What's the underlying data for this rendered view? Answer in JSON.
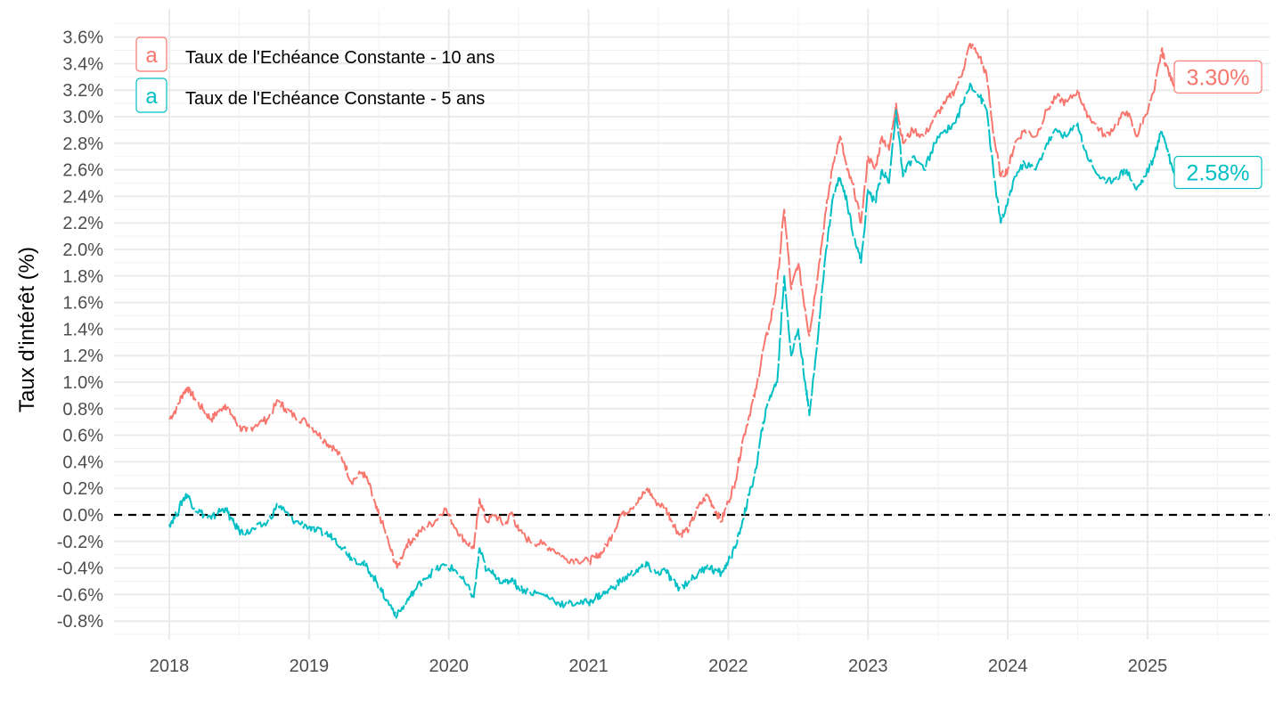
{
  "chart_data": {
    "type": "line",
    "ylabel": "Taux d'intérêt (%)",
    "xlabel": "",
    "x_ticks": [
      "2018",
      "2019",
      "2020",
      "2021",
      "2022",
      "2023",
      "2024",
      "2025"
    ],
    "x_range": [
      2017.6,
      2025.85
    ],
    "y_ticks": [
      "-0.8%",
      "-0.6%",
      "-0.4%",
      "-0.2%",
      "0.0%",
      "0.2%",
      "0.4%",
      "0.6%",
      "0.8%",
      "1.0%",
      "1.2%",
      "1.4%",
      "1.6%",
      "1.8%",
      "2.0%",
      "2.2%",
      "2.4%",
      "2.6%",
      "2.8%",
      "3.0%",
      "3.2%",
      "3.4%",
      "3.6%"
    ],
    "ylim": [
      -0.9,
      3.7
    ],
    "grid": true,
    "reference_line": {
      "y": 0,
      "style": "dashed",
      "color": "#000000"
    },
    "legend": {
      "position": "top-left",
      "key_glyph": "a"
    },
    "series": [
      {
        "name": "Taux de l'Echéance Constante - 10 ans",
        "color": "#F8766D",
        "end_label": "3.30%",
        "points": [
          [
            2018.0,
            0.72
          ],
          [
            2018.05,
            0.8
          ],
          [
            2018.1,
            0.92
          ],
          [
            2018.13,
            0.96
          ],
          [
            2018.18,
            0.88
          ],
          [
            2018.25,
            0.78
          ],
          [
            2018.3,
            0.72
          ],
          [
            2018.35,
            0.78
          ],
          [
            2018.4,
            0.83
          ],
          [
            2018.45,
            0.75
          ],
          [
            2018.5,
            0.66
          ],
          [
            2018.55,
            0.63
          ],
          [
            2018.62,
            0.68
          ],
          [
            2018.7,
            0.72
          ],
          [
            2018.78,
            0.86
          ],
          [
            2018.83,
            0.8
          ],
          [
            2018.9,
            0.74
          ],
          [
            2018.98,
            0.7
          ],
          [
            2019.05,
            0.63
          ],
          [
            2019.12,
            0.55
          ],
          [
            2019.18,
            0.5
          ],
          [
            2019.25,
            0.4
          ],
          [
            2019.3,
            0.25
          ],
          [
            2019.38,
            0.32
          ],
          [
            2019.42,
            0.26
          ],
          [
            2019.48,
            0.05
          ],
          [
            2019.52,
            -0.05
          ],
          [
            2019.58,
            -0.25
          ],
          [
            2019.63,
            -0.4
          ],
          [
            2019.7,
            -0.22
          ],
          [
            2019.75,
            -0.18
          ],
          [
            2019.82,
            -0.1
          ],
          [
            2019.9,
            -0.05
          ],
          [
            2019.97,
            0.05
          ],
          [
            2020.05,
            -0.1
          ],
          [
            2020.12,
            -0.2
          ],
          [
            2020.18,
            -0.25
          ],
          [
            2020.22,
            0.12
          ],
          [
            2020.27,
            -0.05
          ],
          [
            2020.33,
            0.0
          ],
          [
            2020.4,
            -0.08
          ],
          [
            2020.45,
            0.02
          ],
          [
            2020.5,
            -0.12
          ],
          [
            2020.58,
            -0.2
          ],
          [
            2020.67,
            -0.22
          ],
          [
            2020.75,
            -0.26
          ],
          [
            2020.83,
            -0.33
          ],
          [
            2020.92,
            -0.34
          ],
          [
            2021.0,
            -0.35
          ],
          [
            2021.05,
            -0.32
          ],
          [
            2021.1,
            -0.28
          ],
          [
            2021.17,
            -0.15
          ],
          [
            2021.23,
            0.0
          ],
          [
            2021.3,
            0.05
          ],
          [
            2021.37,
            0.12
          ],
          [
            2021.42,
            0.2
          ],
          [
            2021.48,
            0.1
          ],
          [
            2021.55,
            0.05
          ],
          [
            2021.6,
            -0.05
          ],
          [
            2021.65,
            -0.15
          ],
          [
            2021.72,
            -0.1
          ],
          [
            2021.78,
            0.05
          ],
          [
            2021.85,
            0.15
          ],
          [
            2021.9,
            0.05
          ],
          [
            2021.95,
            -0.05
          ],
          [
            2022.0,
            0.1
          ],
          [
            2022.05,
            0.25
          ],
          [
            2022.1,
            0.55
          ],
          [
            2022.15,
            0.75
          ],
          [
            2022.2,
            0.95
          ],
          [
            2022.25,
            1.25
          ],
          [
            2022.3,
            1.45
          ],
          [
            2022.35,
            1.75
          ],
          [
            2022.4,
            2.3
          ],
          [
            2022.45,
            1.7
          ],
          [
            2022.5,
            1.9
          ],
          [
            2022.55,
            1.55
          ],
          [
            2022.58,
            1.35
          ],
          [
            2022.65,
            1.9
          ],
          [
            2022.7,
            2.3
          ],
          [
            2022.75,
            2.65
          ],
          [
            2022.8,
            2.85
          ],
          [
            2022.85,
            2.6
          ],
          [
            2022.9,
            2.45
          ],
          [
            2022.95,
            2.2
          ],
          [
            2023.0,
            2.7
          ],
          [
            2023.05,
            2.6
          ],
          [
            2023.1,
            2.85
          ],
          [
            2023.15,
            2.75
          ],
          [
            2023.2,
            3.1
          ],
          [
            2023.25,
            2.8
          ],
          [
            2023.32,
            2.9
          ],
          [
            2023.4,
            2.85
          ],
          [
            2023.48,
            3.0
          ],
          [
            2023.55,
            3.1
          ],
          [
            2023.62,
            3.2
          ],
          [
            2023.68,
            3.35
          ],
          [
            2023.73,
            3.55
          ],
          [
            2023.8,
            3.45
          ],
          [
            2023.85,
            3.3
          ],
          [
            2023.9,
            2.85
          ],
          [
            2023.95,
            2.55
          ],
          [
            2024.0,
            2.6
          ],
          [
            2024.05,
            2.8
          ],
          [
            2024.12,
            2.9
          ],
          [
            2024.2,
            2.85
          ],
          [
            2024.28,
            3.05
          ],
          [
            2024.35,
            3.15
          ],
          [
            2024.42,
            3.1
          ],
          [
            2024.5,
            3.2
          ],
          [
            2024.55,
            3.05
          ],
          [
            2024.62,
            2.95
          ],
          [
            2024.7,
            2.85
          ],
          [
            2024.78,
            2.95
          ],
          [
            2024.85,
            3.05
          ],
          [
            2024.92,
            2.85
          ],
          [
            2024.98,
            3.0
          ],
          [
            2025.05,
            3.2
          ],
          [
            2025.1,
            3.5
          ],
          [
            2025.13,
            3.4
          ],
          [
            2025.18,
            3.25
          ],
          [
            2025.25,
            3.3
          ]
        ]
      },
      {
        "name": "Taux de l'Echéance Constante - 5 ans",
        "color": "#00BFC4",
        "end_label": "2.58%",
        "points": [
          [
            2018.0,
            -0.07
          ],
          [
            2018.05,
            0.0
          ],
          [
            2018.1,
            0.12
          ],
          [
            2018.13,
            0.15
          ],
          [
            2018.18,
            0.05
          ],
          [
            2018.25,
            0.0
          ],
          [
            2018.3,
            -0.03
          ],
          [
            2018.35,
            0.02
          ],
          [
            2018.4,
            0.05
          ],
          [
            2018.45,
            -0.05
          ],
          [
            2018.5,
            -0.12
          ],
          [
            2018.55,
            -0.14
          ],
          [
            2018.62,
            -0.1
          ],
          [
            2018.7,
            -0.06
          ],
          [
            2018.78,
            0.08
          ],
          [
            2018.83,
            0.02
          ],
          [
            2018.9,
            -0.05
          ],
          [
            2018.98,
            -0.08
          ],
          [
            2019.05,
            -0.12
          ],
          [
            2019.12,
            -0.14
          ],
          [
            2019.18,
            -0.18
          ],
          [
            2019.25,
            -0.25
          ],
          [
            2019.3,
            -0.32
          ],
          [
            2019.38,
            -0.36
          ],
          [
            2019.42,
            -0.4
          ],
          [
            2019.48,
            -0.5
          ],
          [
            2019.52,
            -0.58
          ],
          [
            2019.58,
            -0.68
          ],
          [
            2019.63,
            -0.76
          ],
          [
            2019.7,
            -0.65
          ],
          [
            2019.75,
            -0.58
          ],
          [
            2019.82,
            -0.48
          ],
          [
            2019.9,
            -0.42
          ],
          [
            2019.97,
            -0.38
          ],
          [
            2020.05,
            -0.42
          ],
          [
            2020.12,
            -0.52
          ],
          [
            2020.18,
            -0.62
          ],
          [
            2020.22,
            -0.25
          ],
          [
            2020.27,
            -0.42
          ],
          [
            2020.33,
            -0.45
          ],
          [
            2020.4,
            -0.52
          ],
          [
            2020.45,
            -0.48
          ],
          [
            2020.5,
            -0.55
          ],
          [
            2020.58,
            -0.58
          ],
          [
            2020.67,
            -0.6
          ],
          [
            2020.75,
            -0.64
          ],
          [
            2020.83,
            -0.68
          ],
          [
            2020.92,
            -0.66
          ],
          [
            2021.0,
            -0.66
          ],
          [
            2021.05,
            -0.62
          ],
          [
            2021.1,
            -0.6
          ],
          [
            2021.17,
            -0.55
          ],
          [
            2021.23,
            -0.5
          ],
          [
            2021.3,
            -0.45
          ],
          [
            2021.37,
            -0.4
          ],
          [
            2021.42,
            -0.38
          ],
          [
            2021.48,
            -0.44
          ],
          [
            2021.55,
            -0.42
          ],
          [
            2021.6,
            -0.5
          ],
          [
            2021.65,
            -0.55
          ],
          [
            2021.72,
            -0.5
          ],
          [
            2021.78,
            -0.45
          ],
          [
            2021.85,
            -0.38
          ],
          [
            2021.9,
            -0.42
          ],
          [
            2021.95,
            -0.44
          ],
          [
            2022.0,
            -0.35
          ],
          [
            2022.05,
            -0.25
          ],
          [
            2022.1,
            -0.05
          ],
          [
            2022.15,
            0.15
          ],
          [
            2022.2,
            0.35
          ],
          [
            2022.25,
            0.7
          ],
          [
            2022.3,
            0.9
          ],
          [
            2022.35,
            1.0
          ],
          [
            2022.4,
            1.8
          ],
          [
            2022.45,
            1.2
          ],
          [
            2022.5,
            1.4
          ],
          [
            2022.55,
            1.0
          ],
          [
            2022.58,
            0.75
          ],
          [
            2022.65,
            1.45
          ],
          [
            2022.7,
            2.0
          ],
          [
            2022.75,
            2.4
          ],
          [
            2022.8,
            2.55
          ],
          [
            2022.85,
            2.35
          ],
          [
            2022.9,
            2.1
          ],
          [
            2022.95,
            1.9
          ],
          [
            2023.0,
            2.45
          ],
          [
            2023.05,
            2.35
          ],
          [
            2023.1,
            2.6
          ],
          [
            2023.15,
            2.5
          ],
          [
            2023.2,
            3.05
          ],
          [
            2023.25,
            2.55
          ],
          [
            2023.32,
            2.7
          ],
          [
            2023.4,
            2.6
          ],
          [
            2023.48,
            2.8
          ],
          [
            2023.55,
            2.9
          ],
          [
            2023.62,
            2.95
          ],
          [
            2023.68,
            3.1
          ],
          [
            2023.73,
            3.25
          ],
          [
            2023.8,
            3.15
          ],
          [
            2023.85,
            3.05
          ],
          [
            2023.9,
            2.55
          ],
          [
            2023.95,
            2.2
          ],
          [
            2024.0,
            2.35
          ],
          [
            2024.05,
            2.55
          ],
          [
            2024.12,
            2.65
          ],
          [
            2024.2,
            2.6
          ],
          [
            2024.28,
            2.8
          ],
          [
            2024.35,
            2.9
          ],
          [
            2024.42,
            2.85
          ],
          [
            2024.5,
            2.95
          ],
          [
            2024.55,
            2.75
          ],
          [
            2024.62,
            2.6
          ],
          [
            2024.7,
            2.5
          ],
          [
            2024.78,
            2.55
          ],
          [
            2024.85,
            2.6
          ],
          [
            2024.92,
            2.45
          ],
          [
            2024.98,
            2.55
          ],
          [
            2025.05,
            2.7
          ],
          [
            2025.1,
            2.9
          ],
          [
            2025.13,
            2.8
          ],
          [
            2025.18,
            2.6
          ],
          [
            2025.25,
            2.58
          ]
        ]
      }
    ]
  }
}
